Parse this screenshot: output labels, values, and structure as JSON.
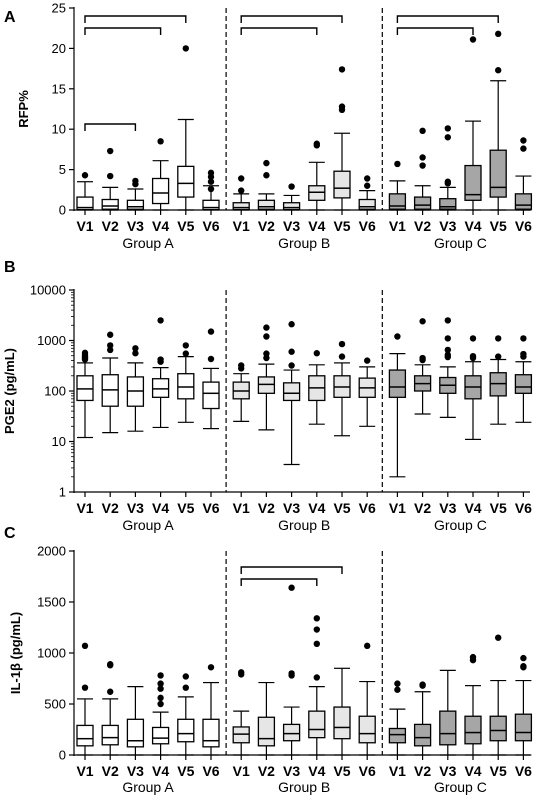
{
  "chart_data": [
    {
      "type": "box",
      "panel_label": "A",
      "ylabel": "RFP%",
      "yscale": "linear",
      "ylim": [
        0,
        25
      ],
      "yticks": [
        0,
        5,
        10,
        15,
        20,
        25
      ],
      "ytick_labels": [
        "0",
        "5",
        "10",
        "15",
        "20",
        "25"
      ],
      "groups": [
        {
          "name": "Group A",
          "fill": "#ffffff",
          "boxes": [
            {
              "label": "V1",
              "whislo": 0,
              "q1": 0.05,
              "med": 0.3,
              "q3": 1.6,
              "whishi": 3.5,
              "outliers": [
                4.3
              ]
            },
            {
              "label": "V2",
              "whislo": 0,
              "q1": 0.1,
              "med": 0.5,
              "q3": 1.3,
              "whishi": 2.8,
              "outliers": [
                7.3,
                4.2
              ]
            },
            {
              "label": "V3",
              "whislo": 0,
              "q1": 0.1,
              "med": 0.4,
              "q3": 1.2,
              "whishi": 2.6,
              "outliers": [
                3.6,
                3.2
              ]
            },
            {
              "label": "V4",
              "whislo": 0,
              "q1": 0.8,
              "med": 2.1,
              "q3": 3.9,
              "whishi": 6.1,
              "outliers": [
                8.5
              ]
            },
            {
              "label": "V5",
              "whislo": 0,
              "q1": 1.6,
              "med": 3.3,
              "q3": 5.4,
              "whishi": 11.2,
              "outliers": [
                20.0
              ]
            },
            {
              "label": "V6",
              "whislo": 0,
              "q1": 0.05,
              "med": 0.3,
              "q3": 1.2,
              "whishi": 3.0,
              "outliers": [
                4.6,
                4.1,
                3.5,
                2.6
              ]
            }
          ]
        },
        {
          "name": "Group B",
          "fill": "#e6e6e6",
          "boxes": [
            {
              "label": "V1",
              "whislo": 0,
              "q1": 0.05,
              "med": 0.3,
              "q3": 0.9,
              "whishi": 2.0,
              "outliers": [
                3.9,
                2.4
              ]
            },
            {
              "label": "V2",
              "whislo": 0,
              "q1": 0.1,
              "med": 0.4,
              "q3": 1.2,
              "whishi": 2.0,
              "outliers": [
                5.8,
                4.3
              ]
            },
            {
              "label": "V3",
              "whislo": 0,
              "q1": 0.05,
              "med": 0.3,
              "q3": 0.9,
              "whishi": 1.8,
              "outliers": [
                2.9
              ]
            },
            {
              "label": "V4",
              "whislo": 0,
              "q1": 1.2,
              "med": 2.2,
              "q3": 3.0,
              "whishi": 5.9,
              "outliers": [
                8.0,
                8.2
              ]
            },
            {
              "label": "V5",
              "whislo": 0,
              "q1": 1.5,
              "med": 2.7,
              "q3": 4.8,
              "whishi": 9.5,
              "outliers": [
                12.4,
                12.8,
                17.4
              ]
            },
            {
              "label": "V6",
              "whislo": 0,
              "q1": 0.1,
              "med": 0.4,
              "q3": 1.3,
              "whishi": 2.4,
              "outliers": [
                3.9,
                3.0
              ]
            }
          ]
        },
        {
          "name": "Group C",
          "fill": "#a6a6a6",
          "boxes": [
            {
              "label": "V1",
              "whislo": 0,
              "q1": 0.1,
              "med": 0.5,
              "q3": 2.0,
              "whishi": 3.6,
              "outliers": [
                5.7
              ]
            },
            {
              "label": "V2",
              "whislo": 0,
              "q1": 0.1,
              "med": 0.6,
              "q3": 1.6,
              "whishi": 3.0,
              "outliers": [
                9.8,
                6.5,
                5.5
              ]
            },
            {
              "label": "V3",
              "whislo": 0,
              "q1": 0.1,
              "med": 0.4,
              "q3": 1.4,
              "whishi": 2.8,
              "outliers": [
                10.1,
                9.0,
                3.5,
                3.3
              ]
            },
            {
              "label": "V4",
              "whislo": 0,
              "q1": 1.2,
              "med": 1.9,
              "q3": 5.5,
              "whishi": 11.0,
              "outliers": [
                21.1
              ]
            },
            {
              "label": "V5",
              "whislo": 0,
              "q1": 1.6,
              "med": 2.8,
              "q3": 7.4,
              "whishi": 16.0,
              "outliers": [
                17.3,
                21.8
              ]
            },
            {
              "label": "V6",
              "whislo": 0,
              "q1": 0.1,
              "med": 0.6,
              "q3": 2.0,
              "whishi": 4.2,
              "outliers": [
                8.6,
                7.6
              ]
            }
          ]
        }
      ],
      "significance_brackets": [
        {
          "group": 0,
          "from": 0,
          "to": 4,
          "level": 0
        },
        {
          "group": 0,
          "from": 0,
          "to": 3,
          "level": 1
        },
        {
          "group": 0,
          "from": 0,
          "to": 2,
          "level": 2
        },
        {
          "group": 1,
          "from": 0,
          "to": 4,
          "level": 0
        },
        {
          "group": 1,
          "from": 0,
          "to": 3,
          "level": 1
        },
        {
          "group": 2,
          "from": 0,
          "to": 4,
          "level": 0
        },
        {
          "group": 2,
          "from": 0,
          "to": 3,
          "level": 1
        }
      ]
    },
    {
      "type": "box",
      "panel_label": "B",
      "ylabel": "PGE2 (pg/mL)",
      "yscale": "log",
      "ylim": [
        1,
        10000
      ],
      "yticks": [
        1,
        10,
        100,
        1000,
        10000
      ],
      "ytick_labels": [
        "1",
        "10",
        "100",
        "1000",
        "10000"
      ],
      "groups": [
        {
          "name": "Group A",
          "fill": "#ffffff",
          "boxes": [
            {
              "label": "V1",
              "whislo": 12,
              "q1": 65,
              "med": 110,
              "q3": 200,
              "whishi": 360,
              "outliers": [
                570,
                520,
                480,
                450,
                420
              ]
            },
            {
              "label": "V2",
              "whislo": 15,
              "q1": 50,
              "med": 105,
              "q3": 210,
              "whishi": 450,
              "outliers": [
                1300,
                800,
                650
              ]
            },
            {
              "label": "V3",
              "whislo": 16,
              "q1": 50,
              "med": 100,
              "q3": 190,
              "whishi": 360,
              "outliers": [
                700,
                560
              ]
            },
            {
              "label": "V4",
              "whislo": 19,
              "q1": 75,
              "med": 110,
              "q3": 175,
              "whishi": 290,
              "outliers": [
                2500,
                420,
                380
              ]
            },
            {
              "label": "V5",
              "whislo": 24,
              "q1": 70,
              "med": 120,
              "q3": 220,
              "whishi": 480,
              "outliers": [
                800,
                550
              ]
            },
            {
              "label": "V6",
              "whislo": 18,
              "q1": 45,
              "med": 90,
              "q3": 150,
              "whishi": 280,
              "outliers": [
                1500,
                430
              ]
            }
          ]
        },
        {
          "name": "Group B",
          "fill": "#e6e6e6",
          "boxes": [
            {
              "label": "V1",
              "whislo": 25,
              "q1": 70,
              "med": 100,
              "q3": 150,
              "whishi": 220,
              "outliers": [
                320,
                280
              ]
            },
            {
              "label": "V2",
              "whislo": 17,
              "q1": 90,
              "med": 135,
              "q3": 190,
              "whishi": 340,
              "outliers": [
                1800,
                1200,
                550,
                450
              ]
            },
            {
              "label": "V3",
              "whislo": 3.5,
              "q1": 65,
              "med": 90,
              "q3": 145,
              "whishi": 260,
              "outliers": [
                2100,
                600,
                320
              ]
            },
            {
              "label": "V4",
              "whislo": 22,
              "q1": 65,
              "med": 115,
              "q3": 200,
              "whishi": 330,
              "outliers": [
                560
              ]
            },
            {
              "label": "V5",
              "whislo": 13,
              "q1": 75,
              "med": 120,
              "q3": 200,
              "whishi": 360,
              "outliers": [
                850,
                480
              ]
            },
            {
              "label": "V6",
              "whislo": 20,
              "q1": 75,
              "med": 115,
              "q3": 180,
              "whishi": 300,
              "outliers": [
                400
              ]
            }
          ]
        },
        {
          "name": "Group C",
          "fill": "#a6a6a6",
          "boxes": [
            {
              "label": "V1",
              "whislo": 2,
              "q1": 75,
              "med": 120,
              "q3": 260,
              "whishi": 550,
              "outliers": [
                1200
              ]
            },
            {
              "label": "V2",
              "whislo": 35,
              "q1": 100,
              "med": 140,
              "q3": 200,
              "whishi": 330,
              "outliers": [
                2400,
                450,
                410
              ]
            },
            {
              "label": "V3",
              "whislo": 30,
              "q1": 90,
              "med": 130,
              "q3": 185,
              "whishi": 300,
              "outliers": [
                2500,
                1100,
                650,
                520,
                470
              ]
            },
            {
              "label": "V4",
              "whislo": 11,
              "q1": 70,
              "med": 120,
              "q3": 200,
              "whishi": 380,
              "outliers": [
                1100,
                490,
                450
              ]
            },
            {
              "label": "V5",
              "whislo": 22,
              "q1": 80,
              "med": 140,
              "q3": 230,
              "whishi": 420,
              "outliers": [
                1100,
                480
              ]
            },
            {
              "label": "V6",
              "whislo": 24,
              "q1": 90,
              "med": 120,
              "q3": 210,
              "whishi": 380,
              "outliers": [
                1100,
                540,
                480
              ]
            }
          ]
        }
      ],
      "significance_brackets": []
    },
    {
      "type": "box",
      "panel_label": "C",
      "ylabel": "IL-1β (pg/mL)",
      "yscale": "linear",
      "ylim": [
        0,
        2000
      ],
      "yticks": [
        0,
        500,
        1000,
        1500,
        2000
      ],
      "ytick_labels": [
        "0",
        "500",
        "1000",
        "1500",
        "2000"
      ],
      "groups": [
        {
          "name": "Group A",
          "fill": "#ffffff",
          "boxes": [
            {
              "label": "V1",
              "whislo": 0,
              "q1": 90,
              "med": 160,
              "q3": 290,
              "whishi": 550,
              "outliers": [
                1070,
                660
              ]
            },
            {
              "label": "V2",
              "whislo": 0,
              "q1": 100,
              "med": 170,
              "q3": 290,
              "whishi": 550,
              "outliers": [
                890,
                880,
                620
              ]
            },
            {
              "label": "V3",
              "whislo": 0,
              "q1": 80,
              "med": 140,
              "q3": 350,
              "whishi": 670,
              "outliers": []
            },
            {
              "label": "V4",
              "whislo": 0,
              "q1": 110,
              "med": 165,
              "q3": 270,
              "whishi": 420,
              "outliers": [
                780,
                700,
                650,
                560,
                500
              ]
            },
            {
              "label": "V5",
              "whislo": 0,
              "q1": 130,
              "med": 210,
              "q3": 350,
              "whishi": 570,
              "outliers": [
                770,
                660
              ]
            },
            {
              "label": "V6",
              "whislo": 0,
              "q1": 80,
              "med": 140,
              "q3": 350,
              "whishi": 710,
              "outliers": [
                860
              ]
            }
          ]
        },
        {
          "name": "Group B",
          "fill": "#e6e6e6",
          "boxes": [
            {
              "label": "V1",
              "whislo": 0,
              "q1": 120,
              "med": 205,
              "q3": 275,
              "whishi": 430,
              "outliers": [
                810,
                790
              ]
            },
            {
              "label": "V2",
              "whislo": 0,
              "q1": 90,
              "med": 160,
              "q3": 370,
              "whishi": 710,
              "outliers": []
            },
            {
              "label": "V3",
              "whislo": 0,
              "q1": 140,
              "med": 210,
              "q3": 300,
              "whishi": 470,
              "outliers": [
                1640,
                800,
                780
              ]
            },
            {
              "label": "V4",
              "whislo": 0,
              "q1": 170,
              "med": 250,
              "q3": 430,
              "whishi": 670,
              "outliers": [
                1340,
                1230,
                1090,
                760
              ]
            },
            {
              "label": "V5",
              "whislo": 0,
              "q1": 160,
              "med": 270,
              "q3": 470,
              "whishi": 850,
              "outliers": []
            },
            {
              "label": "V6",
              "whislo": 0,
              "q1": 120,
              "med": 210,
              "q3": 380,
              "whishi": 720,
              "outliers": [
                1070
              ]
            }
          ]
        },
        {
          "name": "Group C",
          "fill": "#a6a6a6",
          "boxes": [
            {
              "label": "V1",
              "whislo": 0,
              "q1": 120,
              "med": 200,
              "q3": 260,
              "whishi": 450,
              "outliers": [
                700,
                640
              ]
            },
            {
              "label": "V2",
              "whislo": 0,
              "q1": 90,
              "med": 170,
              "q3": 300,
              "whishi": 620,
              "outliers": [
                690,
                680
              ]
            },
            {
              "label": "V3",
              "whislo": 0,
              "q1": 100,
              "med": 210,
              "q3": 430,
              "whishi": 830,
              "outliers": []
            },
            {
              "label": "V4",
              "whislo": 0,
              "q1": 110,
              "med": 220,
              "q3": 380,
              "whishi": 680,
              "outliers": [
                960,
                930
              ]
            },
            {
              "label": "V5",
              "whislo": 0,
              "q1": 140,
              "med": 240,
              "q3": 380,
              "whishi": 730,
              "outliers": [
                1150
              ]
            },
            {
              "label": "V6",
              "whislo": 0,
              "q1": 140,
              "med": 220,
              "q3": 400,
              "whishi": 730,
              "outliers": [
                950,
                870,
                860
              ]
            }
          ]
        }
      ],
      "significance_brackets": [
        {
          "group": 1,
          "from": 0,
          "to": 4,
          "level": 0
        },
        {
          "group": 1,
          "from": 0,
          "to": 3,
          "level": 1
        }
      ]
    }
  ]
}
